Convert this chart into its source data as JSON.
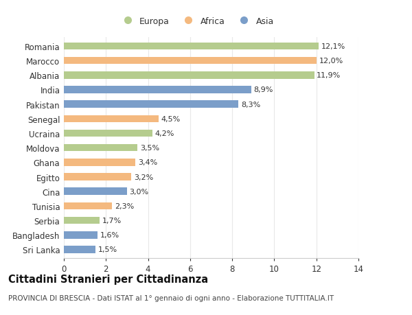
{
  "categories": [
    "Romania",
    "Marocco",
    "Albania",
    "India",
    "Pakistan",
    "Senegal",
    "Ucraina",
    "Moldova",
    "Ghana",
    "Egitto",
    "Cina",
    "Tunisia",
    "Serbia",
    "Bangladesh",
    "Sri Lanka"
  ],
  "values": [
    12.1,
    12.0,
    11.9,
    8.9,
    8.3,
    4.5,
    4.2,
    3.5,
    3.4,
    3.2,
    3.0,
    2.3,
    1.7,
    1.6,
    1.5
  ],
  "labels": [
    "12,1%",
    "12,0%",
    "11,9%",
    "8,9%",
    "8,3%",
    "4,5%",
    "4,2%",
    "3,5%",
    "3,4%",
    "3,2%",
    "3,0%",
    "2,3%",
    "1,7%",
    "1,6%",
    "1,5%"
  ],
  "bar_colors": [
    "#b5cc8e",
    "#f4b97f",
    "#b5cc8e",
    "#7b9ec9",
    "#7b9ec9",
    "#f4b97f",
    "#b5cc8e",
    "#b5cc8e",
    "#f4b97f",
    "#f4b97f",
    "#7b9ec9",
    "#f4b97f",
    "#b5cc8e",
    "#7b9ec9",
    "#7b9ec9"
  ],
  "xlim": [
    0,
    14
  ],
  "xticks": [
    0,
    2,
    4,
    6,
    8,
    10,
    12,
    14
  ],
  "title": "Cittadini Stranieri per Cittadinanza",
  "subtitle": "PROVINCIA DI BRESCIA - Dati ISTAT al 1° gennaio di ogni anno - Elaborazione TUTTITALIA.IT",
  "legend_labels": [
    "Europa",
    "Africa",
    "Asia"
  ],
  "legend_colors": [
    "#b5cc8e",
    "#f4b97f",
    "#7b9ec9"
  ],
  "background_color": "#ffffff",
  "grid_color": "#e8e8e8",
  "bar_height": 0.5,
  "label_fontsize": 8,
  "ytick_fontsize": 8.5,
  "xtick_fontsize": 8.5,
  "title_fontsize": 10.5,
  "subtitle_fontsize": 7.5
}
